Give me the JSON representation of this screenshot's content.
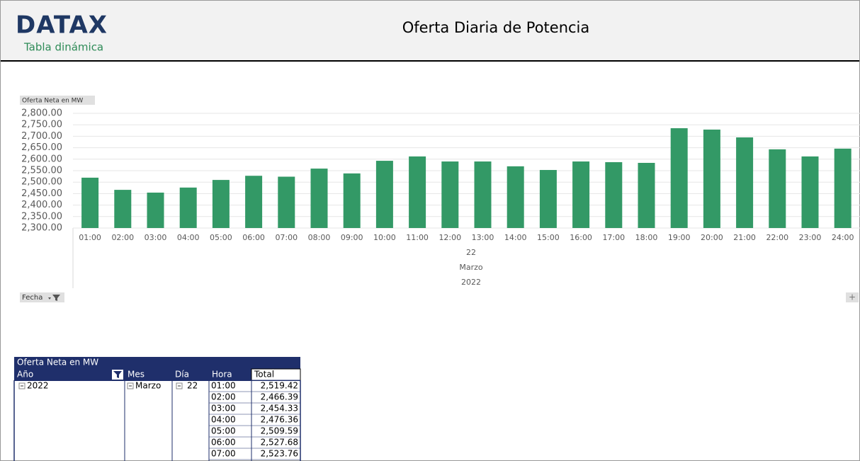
{
  "header": {
    "logo": "DATAX",
    "subtitle": "Tabla dinámica",
    "title": "Oferta Diaria de Potencia"
  },
  "chart_data": {
    "type": "bar",
    "y_label": "Oferta Neta en MW",
    "categories": [
      "01:00",
      "02:00",
      "03:00",
      "04:00",
      "05:00",
      "06:00",
      "07:00",
      "08:00",
      "09:00",
      "10:00",
      "11:00",
      "12:00",
      "13:00",
      "14:00",
      "15:00",
      "16:00",
      "17:00",
      "18:00",
      "19:00",
      "20:00",
      "21:00",
      "22:00",
      "23:00",
      "24:00"
    ],
    "category_groups": [
      "22",
      "Marzo",
      "2022"
    ],
    "values": [
      2519.42,
      2466.39,
      2454.33,
      2476.36,
      2509.59,
      2527.68,
      2523.76,
      2559,
      2538,
      2593,
      2612,
      2590,
      2590,
      2569,
      2553,
      2590,
      2587,
      2584,
      2735,
      2729,
      2695,
      2643,
      2612,
      2646
    ],
    "color": "#339966",
    "ylim": [
      2300,
      2800
    ],
    "yticks": [
      {
        "value": 2300,
        "label": "2,300.00"
      },
      {
        "value": 2350,
        "label": "2,350.00"
      },
      {
        "value": 2400,
        "label": "2,400.00"
      },
      {
        "value": 2450,
        "label": "2,450.00"
      },
      {
        "value": 2500,
        "label": "2,500.00"
      },
      {
        "value": 2550,
        "label": "2,550.00"
      },
      {
        "value": 2600,
        "label": "2,600.00"
      },
      {
        "value": 2650,
        "label": "2,650.00"
      },
      {
        "value": 2700,
        "label": "2,700.00"
      },
      {
        "value": 2750,
        "label": "2,750.00"
      },
      {
        "value": 2800,
        "label": "2,800.00"
      }
    ],
    "grid": true,
    "filter_button": "Fecha"
  },
  "pivot_table": {
    "title": "Oferta Neta en MW",
    "headers": [
      "Año",
      "Mes",
      "Día",
      "Hora",
      "Total"
    ],
    "year": "2022",
    "month": "Marzo",
    "day": "22",
    "rows": [
      [
        "01:00",
        "2,519.42"
      ],
      [
        "02:00",
        "2,466.39"
      ],
      [
        "03:00",
        "2,454.33"
      ],
      [
        "04:00",
        "2,476.36"
      ],
      [
        "05:00",
        "2,509.59"
      ],
      [
        "06:00",
        "2,527.68"
      ],
      [
        "07:00",
        "2,523.76"
      ]
    ]
  }
}
